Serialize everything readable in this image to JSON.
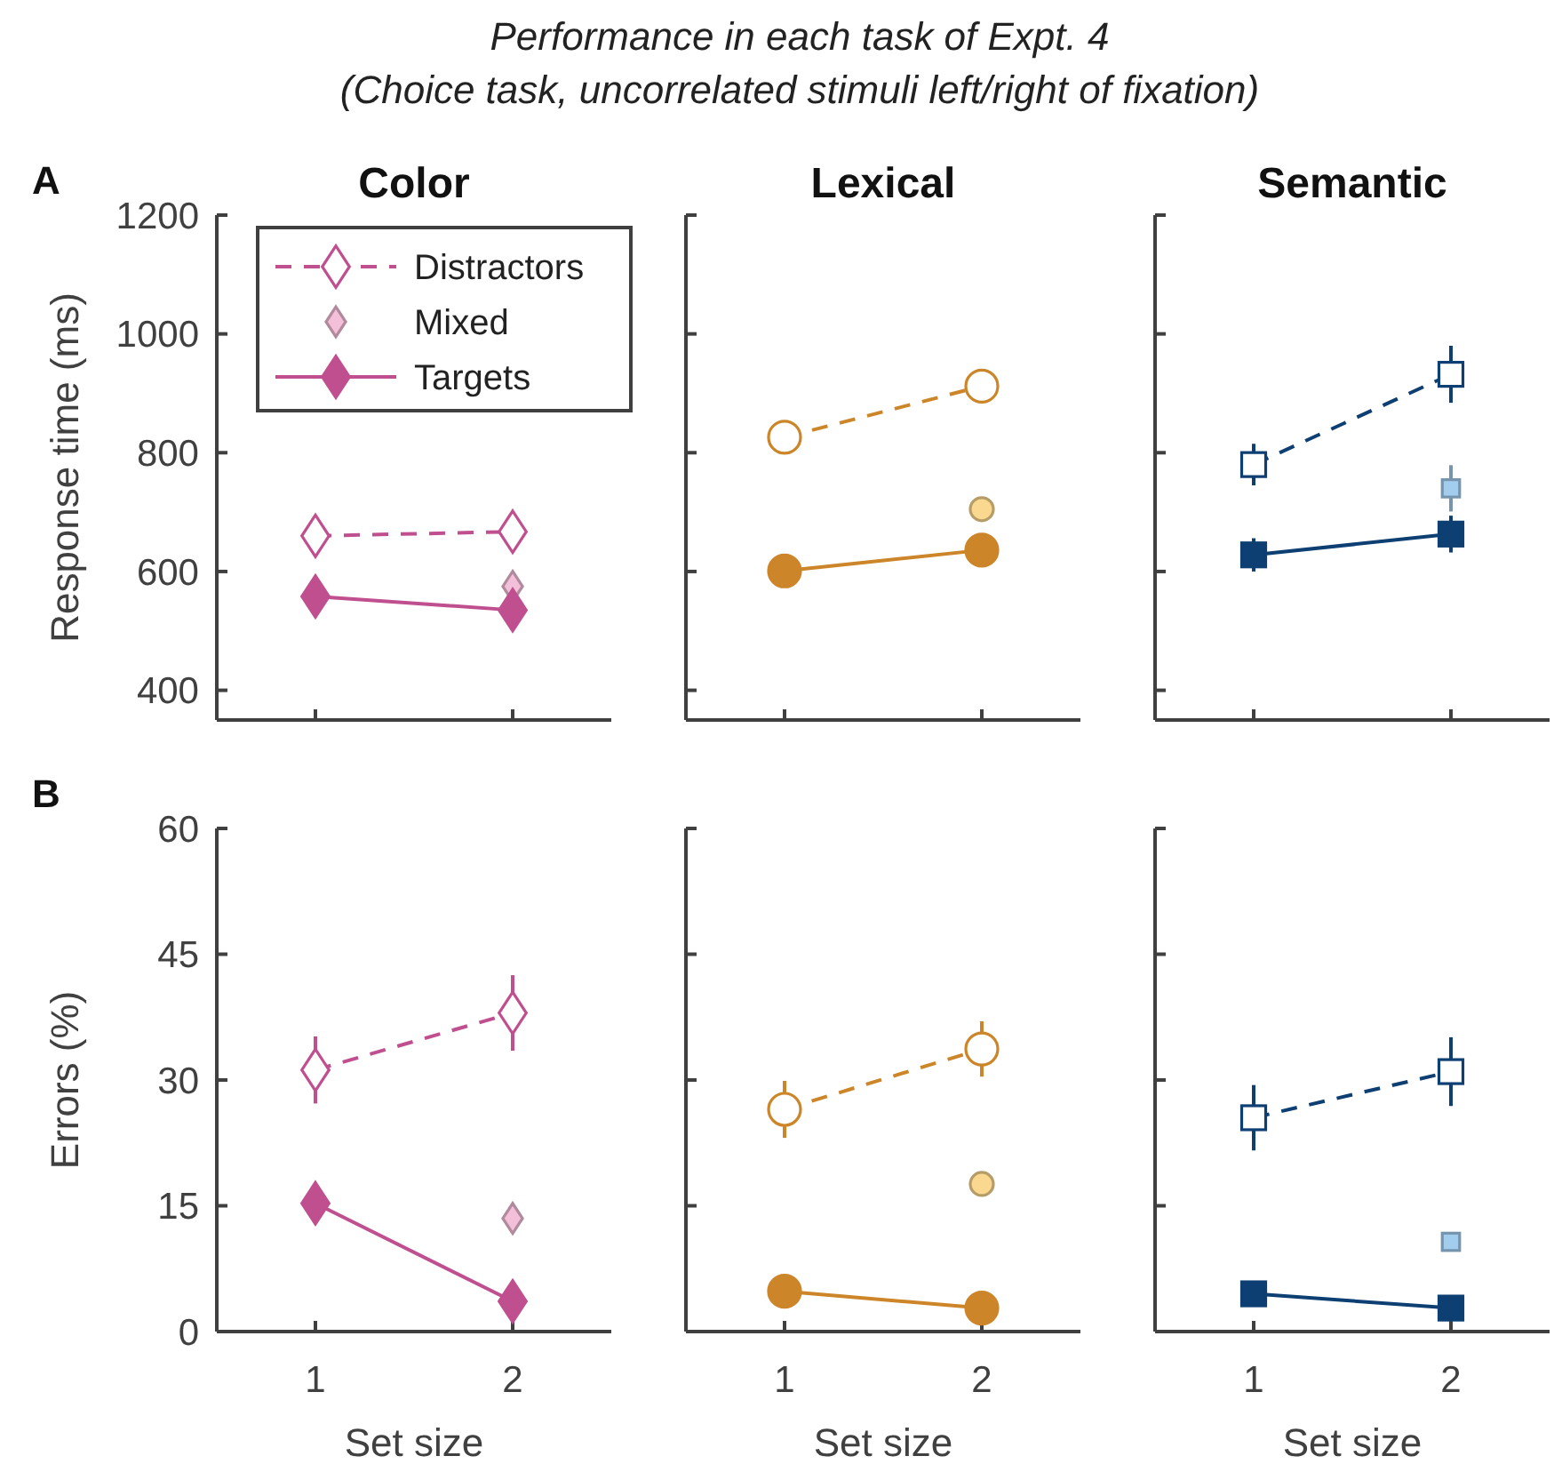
{
  "chart_data": [
    {
      "type": "line",
      "title": "Color",
      "ylabel": "Response time (ms)",
      "annotations": [
        "A",
        "Performance in each task of Expt. 4",
        "(Choice task, uncorrelated stimuli left/right of fixation)"
      ],
      "categories": [
        "1",
        "2"
      ],
      "ylim": [
        350,
        1200
      ],
      "yticks": [
        400,
        600,
        800,
        1000,
        1200
      ],
      "tick_labels": "y",
      "legend": "top left",
      "series": [
        {
          "name": "Distractors",
          "type": "line",
          "values": [
            660,
            667
          ],
          "color": "#c04f8f",
          "marker": "diamond",
          "line_style": "dashed"
        },
        {
          "name": "Mixed",
          "type": "scatter",
          "values": [
            null,
            575
          ],
          "color": "#f4c0d9",
          "marker": "diamond"
        },
        {
          "name": "Targets",
          "type": "line",
          "values": [
            558,
            535
          ],
          "color": "#c04f8f",
          "marker": "diamond",
          "line_style": "solid"
        }
      ]
    },
    {
      "type": "line",
      "title": "Lexical",
      "categories": [
        "1",
        "2"
      ],
      "ylim": [
        350,
        1200
      ],
      "yticks": [
        400,
        600,
        800,
        1000,
        1200
      ],
      "tick_labels": false,
      "series": [
        {
          "type": "line",
          "values": [
            826,
            912
          ],
          "errors": [
            null,
            24
          ],
          "color": "#cc8529",
          "marker": "circle",
          "line_style": "dashed"
        },
        {
          "type": "scatter",
          "values": [
            null,
            705
          ],
          "color": "#fbd88f",
          "marker": "circle"
        },
        {
          "type": "line",
          "values": [
            601,
            636
          ],
          "color": "#cc8529",
          "marker": "circle",
          "line_style": "solid"
        }
      ]
    },
    {
      "type": "line",
      "title": "Semantic",
      "categories": [
        "1",
        "2"
      ],
      "ylim": [
        350,
        1200
      ],
      "yticks": [
        400,
        600,
        800,
        1000,
        1200
      ],
      "tick_labels": false,
      "series": [
        {
          "type": "line",
          "values": [
            780,
            932
          ],
          "errors": [
            35,
            48
          ],
          "color": "#0e3f73",
          "marker": "square",
          "line_style": "dashed"
        },
        {
          "type": "scatter",
          "values": [
            null,
            740
          ],
          "errors": [
            null,
            39
          ],
          "color": "#a3cdef",
          "marker": "square"
        },
        {
          "type": "line",
          "values": [
            628,
            663
          ],
          "errors": [
            28,
            31
          ],
          "color": "#0e3f73",
          "marker": "square",
          "line_style": "solid"
        }
      ]
    },
    {
      "type": "line",
      "xlabel": "Set size",
      "ylabel": "Errors (%)",
      "annotations": [
        "B"
      ],
      "categories": [
        "1",
        "2"
      ],
      "ylim": [
        0,
        60
      ],
      "yticks": [
        0,
        15,
        30,
        45,
        60
      ],
      "series": [
        {
          "type": "line",
          "values": [
            31.2,
            38
          ],
          "errors": [
            4,
            4.5
          ],
          "color": "#c04f8f",
          "marker": "diamond",
          "line_style": "dashed"
        },
        {
          "type": "scatter",
          "values": [
            null,
            13.5
          ],
          "color": "#f4c0d9",
          "marker": "diamond"
        },
        {
          "type": "line",
          "values": [
            15.3,
            3.6
          ],
          "color": "#c04f8f",
          "marker": "diamond",
          "line_style": "solid"
        }
      ]
    },
    {
      "type": "line",
      "xlabel": "Set size",
      "categories": [
        "1",
        "2"
      ],
      "ylim": [
        0,
        60
      ],
      "yticks": [
        0,
        15,
        30,
        45,
        60
      ],
      "tick_labels": "x",
      "series": [
        {
          "type": "line",
          "values": [
            26.5,
            33.7
          ],
          "errors": [
            3.4,
            3.3
          ],
          "color": "#cc8529",
          "marker": "circle",
          "line_style": "dashed"
        },
        {
          "type": "scatter",
          "values": [
            null,
            17.6
          ],
          "color": "#fbd88f",
          "marker": "circle"
        },
        {
          "type": "line",
          "values": [
            4.8,
            2.8
          ],
          "color": "#cc8529",
          "marker": "circle",
          "line_style": "solid"
        }
      ]
    },
    {
      "type": "line",
      "xlabel": "Set size",
      "categories": [
        "1",
        "2"
      ],
      "ylim": [
        0,
        60
      ],
      "yticks": [
        0,
        15,
        30,
        45,
        60
      ],
      "tick_labels": "x",
      "series": [
        {
          "type": "line",
          "values": [
            25.5,
            31
          ],
          "errors": [
            3.9,
            4.1
          ],
          "color": "#0e3f73",
          "marker": "square",
          "line_style": "dashed"
        },
        {
          "type": "scatter",
          "values": [
            null,
            10.7
          ],
          "color": "#a3cdef",
          "marker": "square"
        },
        {
          "type": "line",
          "values": [
            4.5,
            2.8
          ],
          "color": "#0e3f73",
          "marker": "square",
          "line_style": "solid"
        }
      ]
    }
  ]
}
